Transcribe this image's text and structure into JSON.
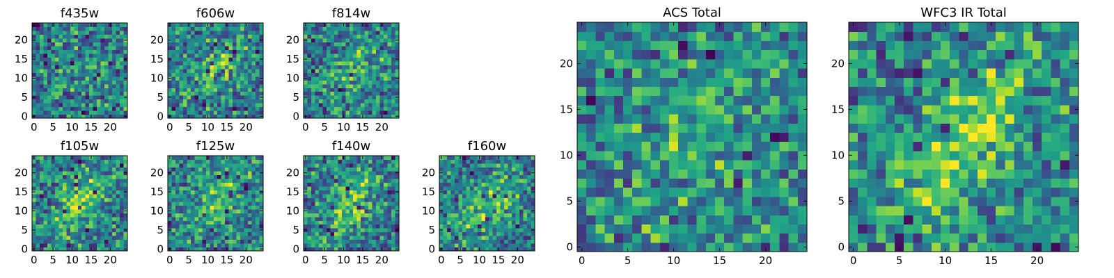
{
  "chart_data": {
    "type": "heatmap",
    "colormap": "viridis",
    "image_size": [
      25,
      25
    ],
    "panels": [
      {
        "name": "f435w",
        "title": "f435w",
        "xticks": [
          0,
          5,
          10,
          15,
          20
        ],
        "yticks": [
          0,
          5,
          10,
          15,
          20
        ],
        "xlim": [
          0,
          24
        ],
        "ylim": [
          0,
          24
        ],
        "seed": 11,
        "blob": 0.15,
        "blob_center": [
          12,
          12
        ],
        "blob_sigma": [
          6,
          4
        ],
        "blob_angle": 0.8,
        "dark_fraction": 0.08
      },
      {
        "name": "f606w",
        "title": "f606w",
        "xticks": [
          0,
          5,
          10,
          15,
          20
        ],
        "yticks": [
          0,
          5,
          10,
          15,
          20
        ],
        "xlim": [
          0,
          24
        ],
        "ylim": [
          0,
          24
        ],
        "seed": 23,
        "blob": 0.55,
        "blob_center": [
          13,
          13
        ],
        "blob_sigma": [
          6,
          3.5
        ],
        "blob_angle": 0.9,
        "dark_fraction": 0.06
      },
      {
        "name": "f814w",
        "title": "f814w",
        "xticks": [
          0,
          5,
          10,
          15,
          20
        ],
        "yticks": [
          0,
          5,
          10,
          15,
          20
        ],
        "xlim": [
          0,
          24
        ],
        "ylim": [
          0,
          24
        ],
        "seed": 37,
        "blob": 0.5,
        "blob_center": [
          14,
          13
        ],
        "blob_sigma": [
          6,
          3.5
        ],
        "blob_angle": 0.9,
        "dark_fraction": 0.07
      },
      {
        "name": "f105w",
        "title": "f105w",
        "xticks": [
          0,
          5,
          10,
          15,
          20
        ],
        "yticks": [
          0,
          5,
          10,
          15,
          20
        ],
        "xlim": [
          0,
          24
        ],
        "ylim": [
          0,
          24
        ],
        "seed": 41,
        "blob": 0.75,
        "blob_center": [
          12,
          12
        ],
        "blob_sigma": [
          7,
          3
        ],
        "blob_angle": 0.9,
        "dark_fraction": 0.05
      },
      {
        "name": "f125w",
        "title": "f125w",
        "xticks": [
          0,
          5,
          10,
          15,
          20
        ],
        "yticks": [
          0,
          5,
          10,
          15,
          20
        ],
        "xlim": [
          0,
          24
        ],
        "ylim": [
          0,
          24
        ],
        "seed": 53,
        "blob": 0.55,
        "blob_center": [
          13,
          13
        ],
        "blob_sigma": [
          7,
          3.5
        ],
        "blob_angle": 0.9,
        "dark_fraction": 0.05
      },
      {
        "name": "f140w",
        "title": "f140w",
        "xticks": [
          0,
          5,
          10,
          15,
          20
        ],
        "yticks": [
          0,
          5,
          10,
          15,
          20
        ],
        "xlim": [
          0,
          24
        ],
        "ylim": [
          0,
          24
        ],
        "seed": 67,
        "blob": 0.6,
        "blob_center": [
          12,
          12
        ],
        "blob_sigma": [
          7,
          3.5
        ],
        "blob_angle": 0.9,
        "dark_fraction": 0.05
      },
      {
        "name": "f160w",
        "title": "f160w",
        "xticks": [
          0,
          5,
          10,
          15,
          20
        ],
        "yticks": [
          0,
          5,
          10,
          15,
          20
        ],
        "xlim": [
          0,
          24
        ],
        "ylim": [
          0,
          24
        ],
        "seed": 79,
        "blob": 0.6,
        "blob_center": [
          12,
          11
        ],
        "blob_sigma": [
          7,
          3.5
        ],
        "blob_angle": 0.9,
        "dark_fraction": 0.06
      },
      {
        "name": "acs-total",
        "title": "ACS Total",
        "xticks": [
          0,
          5,
          10,
          15,
          20
        ],
        "yticks": [
          0,
          5,
          10,
          15,
          20
        ],
        "xlim": [
          0,
          24
        ],
        "ylim": [
          0,
          24
        ],
        "seed": 97,
        "blob": 0.4,
        "blob_center": [
          13,
          12
        ],
        "blob_sigma": [
          7,
          4
        ],
        "blob_angle": 0.9,
        "dark_fraction": 0.05
      },
      {
        "name": "wfc3-ir-total",
        "title": "WFC3 IR Total",
        "xticks": [
          0,
          5,
          10,
          15,
          20
        ],
        "yticks": [
          0,
          5,
          10,
          15,
          20
        ],
        "xlim": [
          0,
          24
        ],
        "ylim": [
          0,
          24
        ],
        "seed": 113,
        "blob": 0.85,
        "blob_center": [
          12.5,
          12
        ],
        "blob_sigma": [
          8,
          3.2
        ],
        "blob_angle": 0.95,
        "dark_fraction": 0.04
      }
    ]
  }
}
